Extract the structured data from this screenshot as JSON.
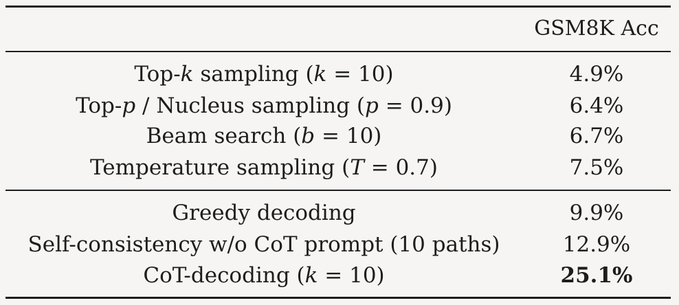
{
  "table": {
    "header": {
      "method": "",
      "metric": "GSM8K Acc"
    },
    "groups": [
      {
        "rows": [
          {
            "method": [
              "Top-",
              "k",
              " sampling (",
              "k",
              " = 10)"
            ],
            "acc": "4.9%"
          },
          {
            "method": [
              "Top-",
              "p",
              " / Nucleus sampling (",
              "p",
              " = 0.9)"
            ],
            "acc": "6.4%"
          },
          {
            "method": [
              "Beam search (",
              "b",
              " = 10)"
            ],
            "acc": "6.7%"
          },
          {
            "method": [
              "Temperature sampling (",
              "T",
              " = 0.7)"
            ],
            "acc": "7.5%"
          }
        ]
      },
      {
        "rows": [
          {
            "method": [
              "Greedy decoding"
            ],
            "acc": "9.9%"
          },
          {
            "method": [
              "Self-consistency w/o CoT prompt (10 paths)"
            ],
            "acc": "12.9%"
          },
          {
            "method": [
              "CoT-decoding (",
              "k",
              " = 10)"
            ],
            "acc": "25.1%",
            "bold": true
          }
        ]
      }
    ]
  }
}
